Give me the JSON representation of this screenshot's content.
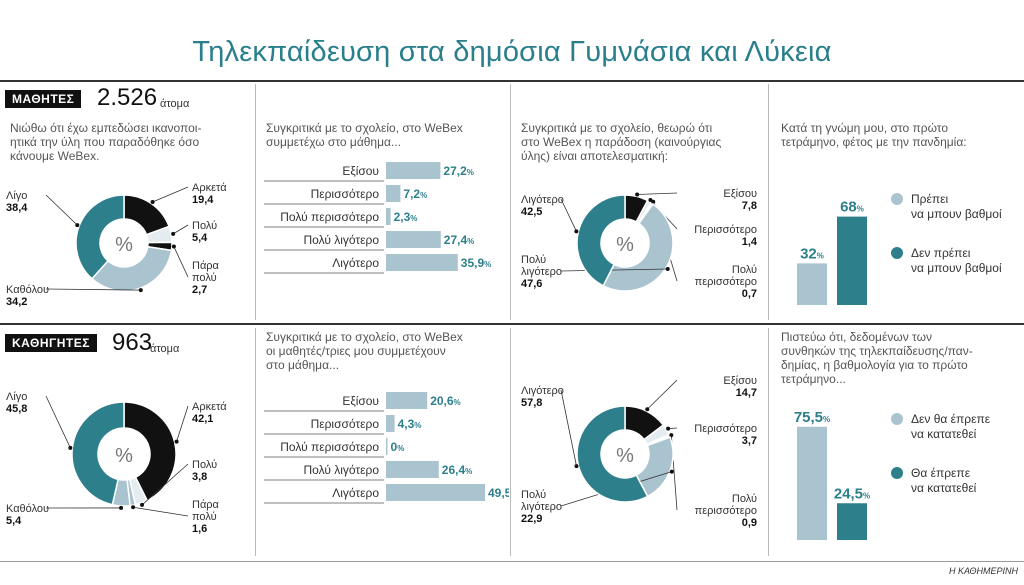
{
  "title": "Τηλεκπαίδευση στα δημόσια Γυμνάσια και Λύκεια",
  "source": "Η ΚΑΘΗΜΕΡΙΝΗ",
  "colors": {
    "black": "#111111",
    "teal": "#2d7f8c",
    "light": "#a9c3cf",
    "pale": "#e5ecef",
    "title": "#2a7f8c"
  },
  "sections": [
    {
      "label": "ΜΑΘΗΤΕΣ",
      "count": "2.526",
      "unit": "άτομα",
      "q1": [
        "Νιώθω ότι έχω εμπεδώσει ικανοποι-",
        "ητικά την ύλη που παραδόθηκε όσο",
        "κάνουμε WeBex."
      ],
      "q2": [
        "Συγκριτικά με το σχολείο, στο WeBex",
        "συμμετέχω στο μάθημα..."
      ],
      "q3": [
        "Συγκριτικά με το σχολείο, θεωρώ ότι",
        "στο WeBex η παράδοση (καινούργιας",
        "ύλης) είναι αποτελεσματική:"
      ],
      "q4": [
        "Κατά τη γνώμη μου, στο πρώτο",
        "τετράμηνο, φέτος με την πανδημία:"
      ]
    },
    {
      "label": "ΚΑΘΗΓΗΤΕΣ",
      "count": "963",
      "unit": "άτομα",
      "q2": [
        "Συγκριτικά με το σχολείο, στο WeBex",
        "οι μαθητές/τριες μου συμμετέχουν",
        "στο μάθημα..."
      ],
      "q4": [
        "Πιστεύω ότι, δεδομένων των",
        "συνθηκών της τηλεκπαίδευσης/παν-",
        "δημίας, η βαθμολογία για το πρώτο",
        "τετράμηνο..."
      ]
    }
  ],
  "chart_data": [
    {
      "type": "pie",
      "id": "students-learning",
      "center_label": "%",
      "slices": [
        {
          "label": [
            "Αρκετά"
          ],
          "value": 19.4,
          "value_text": "19,4",
          "color": "#111111"
        },
        {
          "label": [
            "Πολύ"
          ],
          "value": 5.4,
          "value_text": "5,4",
          "color": "#e5ecef"
        },
        {
          "label": [
            "Πάρα",
            "πολύ"
          ],
          "value": 2.7,
          "value_text": "2,7",
          "color": "#111111"
        },
        {
          "label": [
            "Καθόλου"
          ],
          "value": 34.2,
          "value_text": "34,2",
          "color": "#a9c3cf"
        },
        {
          "label": [
            "Λίγο"
          ],
          "value": 38.4,
          "value_text": "38,4",
          "color": "#2d7f8c"
        }
      ]
    },
    {
      "type": "bar",
      "id": "students-participation",
      "categories": [
        "Εξίσου",
        "Περισσότερο",
        "Πολύ περισσότερο",
        "Πολύ λιγότερο",
        "Λιγότερο"
      ],
      "values": [
        27.2,
        7.2,
        2.3,
        27.4,
        35.9
      ],
      "value_labels": [
        "27,2",
        "7,2",
        "2,3",
        "27,4",
        "35,9"
      ],
      "unit": "%",
      "xlim": [
        0,
        50
      ]
    },
    {
      "type": "pie",
      "id": "students-effectiveness",
      "center_label": "%",
      "slices": [
        {
          "label": [
            "Εξίσου"
          ],
          "value": 7.8,
          "value_text": "7,8",
          "color": "#111111"
        },
        {
          "label": [
            "Περισσότερο"
          ],
          "value": 1.4,
          "value_text": "1,4",
          "color": "#e5ecef"
        },
        {
          "label": [
            "Πολύ",
            "περισσότερο"
          ],
          "value": 0.7,
          "value_text": "0,7",
          "color": "#ffffff"
        },
        {
          "label": [
            "Πολύ",
            "λιγότερο"
          ],
          "value": 47.6,
          "value_text": "47,6",
          "color": "#a9c3cf"
        },
        {
          "label": [
            "Λιγότερο"
          ],
          "value": 42.5,
          "value_text": "42,5",
          "color": "#2d7f8c"
        }
      ]
    },
    {
      "type": "bar",
      "id": "students-grading",
      "categories": [
        "Πρέπει να μπουν βαθμοί",
        "Δεν πρέπει να μπουν βαθμοί"
      ],
      "values": [
        32,
        68
      ],
      "value_labels": [
        "32",
        "68"
      ],
      "unit": "%",
      "colors": [
        "#a9c3cf",
        "#2d7f8c"
      ],
      "legend": [
        {
          "lines": [
            "Πρέπει",
            "να μπουν βαθμοί"
          ],
          "color": "#a9c3cf"
        },
        {
          "lines": [
            "Δεν πρέπει",
            "να μπουν βαθμοί"
          ],
          "color": "#2d7f8c"
        }
      ]
    },
    {
      "type": "pie",
      "id": "teachers-learning",
      "center_label": "%",
      "slices": [
        {
          "label": [
            "Αρκετά"
          ],
          "value": 42.1,
          "value_text": "42,1",
          "color": "#111111"
        },
        {
          "label": [
            "Πολύ"
          ],
          "value": 3.8,
          "value_text": "3,8",
          "color": "#e5ecef"
        },
        {
          "label": [
            "Πάρα",
            "πολύ"
          ],
          "value": 1.6,
          "value_text": "1,6",
          "color": "#a9c3cf"
        },
        {
          "label": [
            "Καθόλου"
          ],
          "value": 5.4,
          "value_text": "5,4",
          "color": "#a9c3cf"
        },
        {
          "label": [
            "Λίγο"
          ],
          "value": 45.8,
          "value_text": "45,8",
          "color": "#2d7f8c"
        }
      ]
    },
    {
      "type": "bar",
      "id": "teachers-participation",
      "categories": [
        "Εξίσου",
        "Περισσότερο",
        "Πολύ περισσότερο",
        "Πολύ λιγότερο",
        "Λιγότερο"
      ],
      "values": [
        20.6,
        4.3,
        0,
        26.4,
        49.5
      ],
      "value_labels": [
        "20,6",
        "4,3",
        "0",
        "26,4",
        "49,5"
      ],
      "unit": "%",
      "xlim": [
        0,
        50
      ]
    },
    {
      "type": "pie",
      "id": "teachers-effectiveness",
      "center_label": "%",
      "slices": [
        {
          "label": [
            "Εξίσου"
          ],
          "value": 14.7,
          "value_text": "14,7",
          "color": "#111111"
        },
        {
          "label": [
            "Περισσότερο"
          ],
          "value": 3.7,
          "value_text": "3,7",
          "color": "#e5ecef"
        },
        {
          "label": [
            "Πολύ",
            "περισσότερο"
          ],
          "value": 0.9,
          "value_text": "0,9",
          "color": "#ffffff"
        },
        {
          "label": [
            "Πολύ",
            "λιγότερο"
          ],
          "value": 22.9,
          "value_text": "22,9",
          "color": "#a9c3cf"
        },
        {
          "label": [
            "Λιγότερο"
          ],
          "value": 57.8,
          "value_text": "57,8",
          "color": "#2d7f8c"
        }
      ]
    },
    {
      "type": "bar",
      "id": "teachers-grading",
      "categories": [
        "Δεν θα έπρεπε να κατατεθεί",
        "Θα έπρεπε να κατατεθεί"
      ],
      "values": [
        75.5,
        24.5
      ],
      "value_labels": [
        "75,5",
        "24,5"
      ],
      "unit": "%",
      "colors": [
        "#a9c3cf",
        "#2d7f8c"
      ],
      "legend": [
        {
          "lines": [
            "Δεν θα έπρεπε",
            "να κατατεθεί"
          ],
          "color": "#a9c3cf"
        },
        {
          "lines": [
            "Θα έπρεπε",
            "να κατατεθεί"
          ],
          "color": "#2d7f8c"
        }
      ]
    }
  ]
}
